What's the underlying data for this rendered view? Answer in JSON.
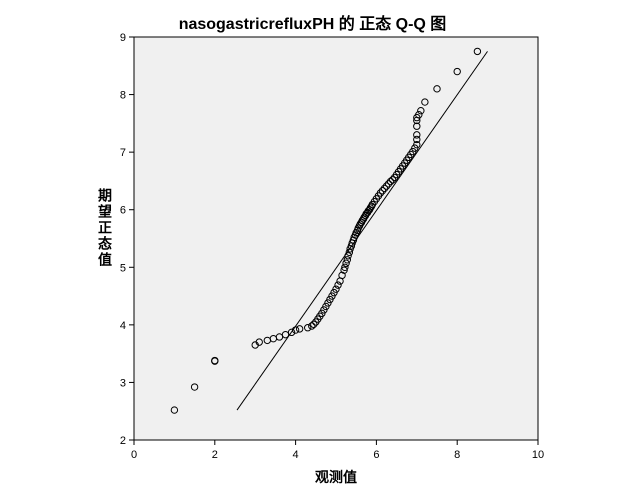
{
  "chart_data": {
    "type": "scatter",
    "title": "nasogastricrefluxPH 的 正态 Q-Q 图",
    "xlabel": "观测值",
    "ylabel": "期望正态值",
    "xlim": [
      0,
      10
    ],
    "ylim": [
      2,
      9
    ],
    "xticks": [
      0,
      2,
      4,
      6,
      8,
      10
    ],
    "yticks": [
      2,
      3,
      4,
      5,
      6,
      7,
      8,
      9
    ],
    "grid": false,
    "background": "#f0f0f0",
    "series": [
      {
        "marker": "open-circle",
        "x": [
          1.0,
          1.5,
          2.0,
          2.0,
          3.0,
          3.1,
          3.3,
          3.45,
          3.6,
          3.75,
          3.9,
          4.0,
          4.1,
          4.3,
          4.4,
          4.45,
          4.5,
          4.55,
          4.6,
          4.65,
          4.7,
          4.75,
          4.8,
          4.85,
          4.9,
          4.95,
          5.0,
          5.05,
          5.1,
          5.15,
          5.2,
          5.22,
          5.25,
          5.28,
          5.3,
          5.33,
          5.35,
          5.38,
          5.4,
          5.43,
          5.45,
          5.48,
          5.5,
          5.53,
          5.55,
          5.58,
          5.6,
          5.63,
          5.65,
          5.68,
          5.7,
          5.73,
          5.75,
          5.78,
          5.8,
          5.83,
          5.85,
          5.88,
          5.9,
          5.95,
          6.0,
          6.05,
          6.1,
          6.15,
          6.2,
          6.25,
          6.3,
          6.35,
          6.4,
          6.45,
          6.5,
          6.55,
          6.6,
          6.65,
          6.7,
          6.75,
          6.8,
          6.85,
          6.9,
          6.95,
          7.0,
          7.0,
          7.0,
          7.0,
          7.0,
          7.0,
          7.05,
          7.1,
          7.2,
          7.5,
          8.0,
          8.5
        ],
        "y": [
          2.52,
          2.92,
          3.37,
          3.38,
          3.65,
          3.7,
          3.73,
          3.76,
          3.79,
          3.83,
          3.87,
          3.91,
          3.93,
          3.95,
          3.98,
          4.01,
          4.05,
          4.1,
          4.15,
          4.2,
          4.26,
          4.32,
          4.38,
          4.44,
          4.5,
          4.56,
          4.62,
          4.69,
          4.76,
          4.86,
          4.95,
          5.0,
          5.07,
          5.13,
          5.2,
          5.26,
          5.32,
          5.37,
          5.42,
          5.47,
          5.52,
          5.56,
          5.6,
          5.64,
          5.68,
          5.72,
          5.75,
          5.78,
          5.81,
          5.84,
          5.87,
          5.9,
          5.93,
          5.95,
          5.98,
          6.0,
          6.03,
          6.06,
          6.09,
          6.14,
          6.19,
          6.24,
          6.29,
          6.33,
          6.37,
          6.41,
          6.45,
          6.49,
          6.52,
          6.56,
          6.61,
          6.66,
          6.71,
          6.76,
          6.81,
          6.86,
          6.91,
          6.96,
          7.01,
          7.07,
          7.13,
          7.22,
          7.3,
          7.45,
          7.55,
          7.6,
          7.65,
          7.72,
          7.87,
          8.1,
          8.4,
          8.75
        ]
      }
    ],
    "reference_line": {
      "x": [
        2.55,
        8.75
      ],
      "y": [
        2.52,
        8.75
      ]
    }
  }
}
